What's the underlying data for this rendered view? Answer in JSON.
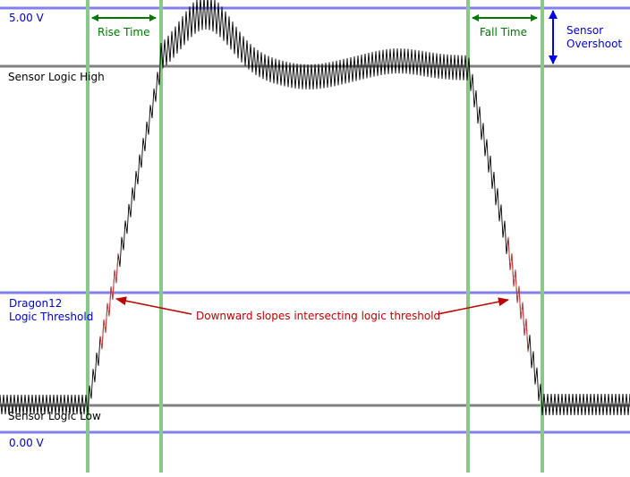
{
  "labels": {
    "v_max": "5.00 V",
    "v_min": "0.00 V",
    "logic_high": "Sensor Logic High",
    "logic_low": "Sensor Logic Low",
    "threshold_line1": "Dragon12",
    "threshold_line2": "Logic Threshold",
    "rise_time": "Rise Time",
    "fall_time": "Fall Time",
    "overshoot_line1": "Sensor",
    "overshoot_line2": "Overshoot",
    "annotation": "Downward slopes intersecting logic threshold"
  },
  "colors": {
    "blue_line": "#8080ee",
    "gray_line": "#808080",
    "green_line": "#88c888",
    "green_arrow": "#007700",
    "blue_arrow": "#0000ee",
    "blue_text": "#0000cc",
    "red": "#bb0000",
    "signal": "#000000",
    "signal_highlight": "#cc4444"
  }
}
